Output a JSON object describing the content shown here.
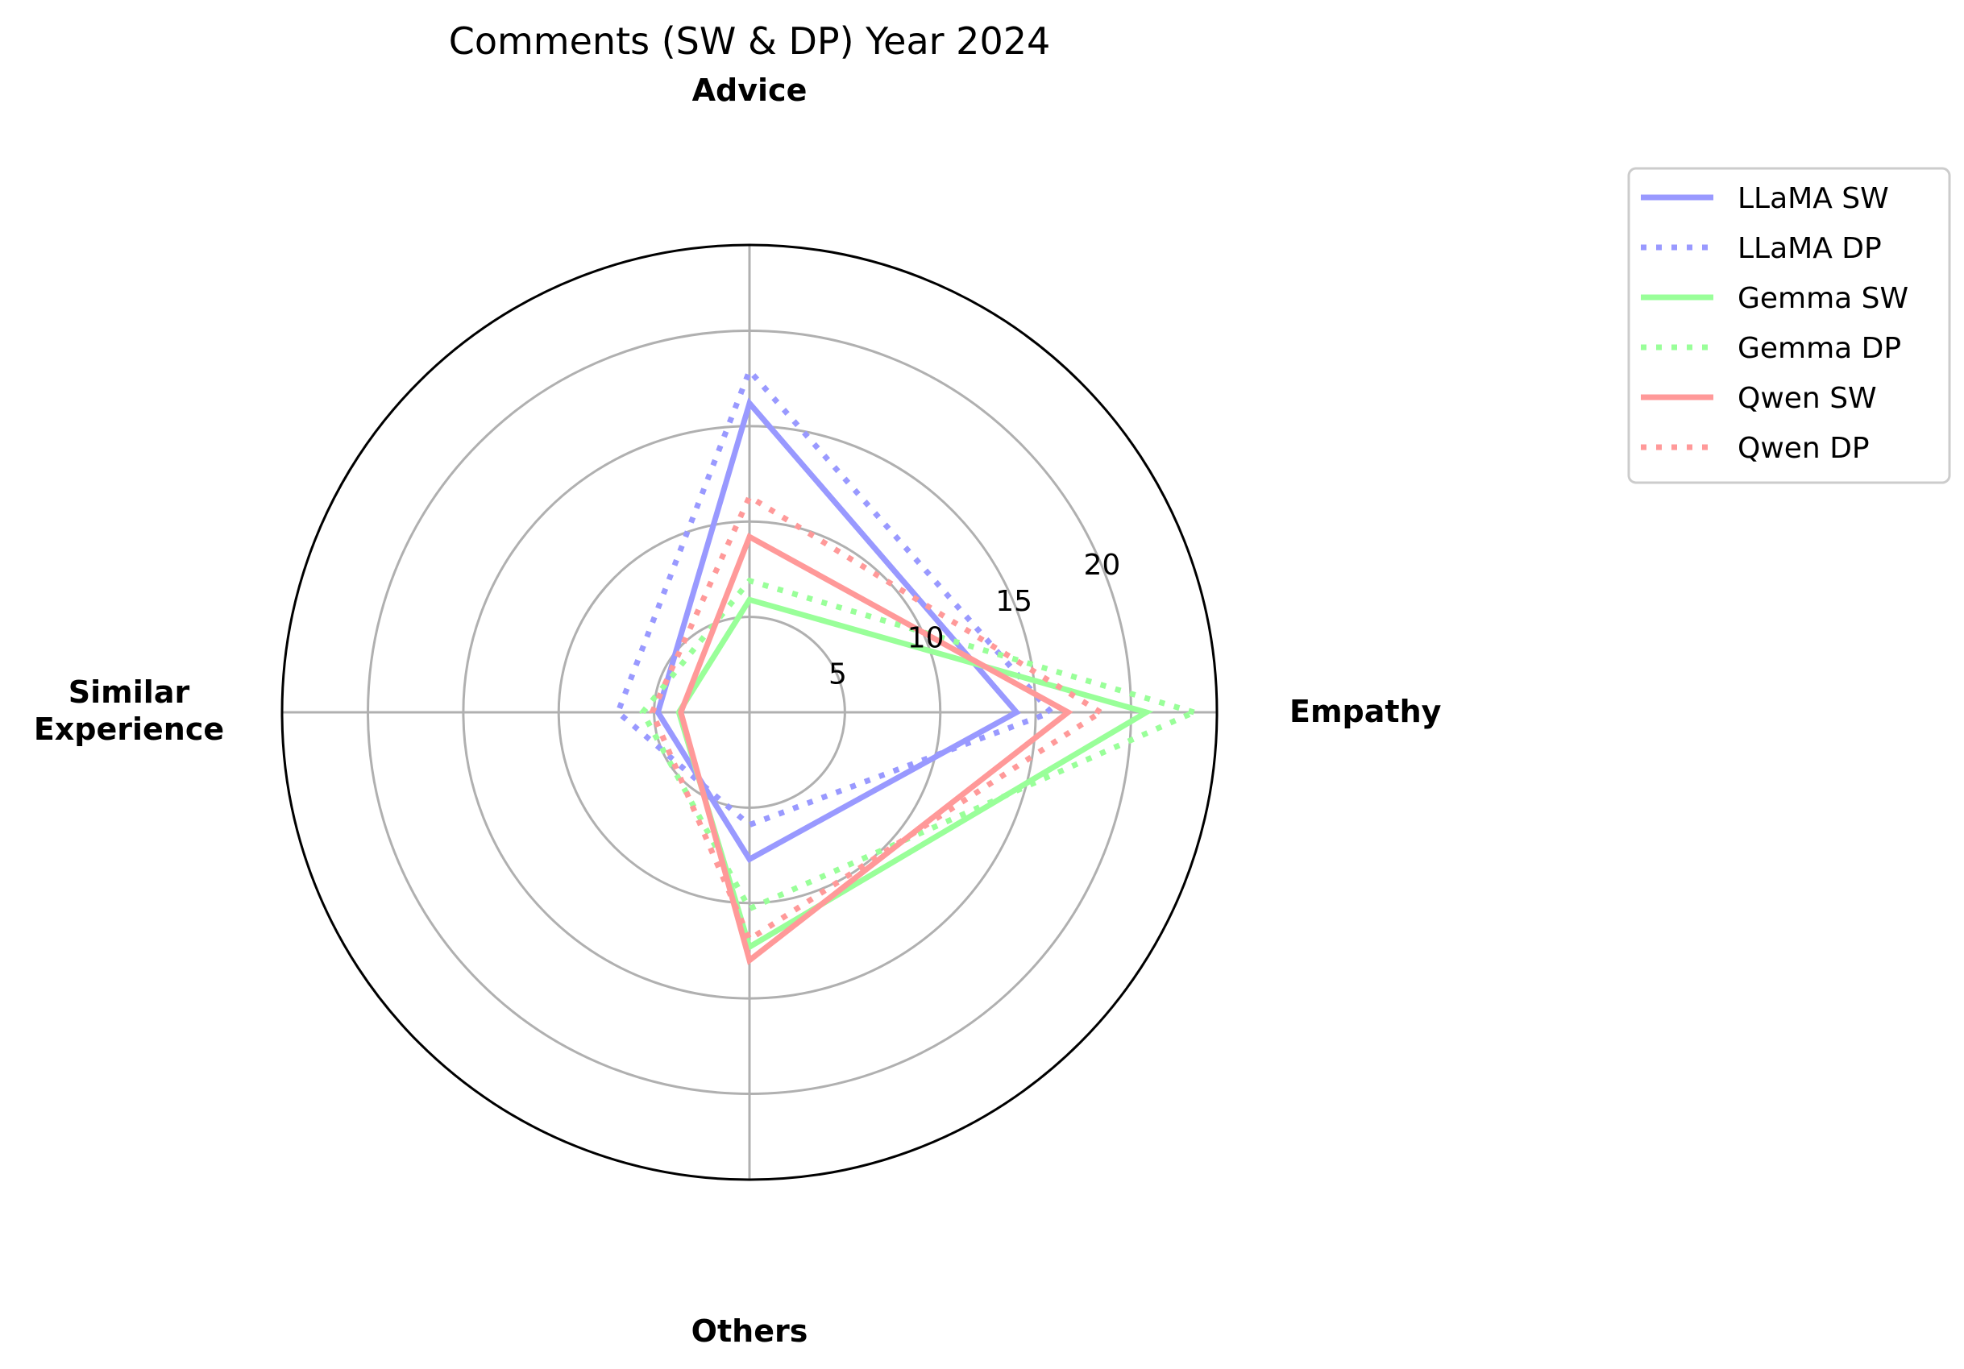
{
  "chart_data": {
    "type": "radar",
    "title": "Comments (SW & DP) Year 2024",
    "axes": [
      "Empathy",
      "Advice",
      "Similar\nExperience",
      "Others"
    ],
    "rlim": [
      0,
      24.5
    ],
    "r_ticks": [
      5,
      10,
      15,
      20
    ],
    "grid": true,
    "legend_position": "top-right outside",
    "series": [
      {
        "name": "LLaMA SW",
        "color": "#9999ff",
        "style": "solid",
        "values": [
          14,
          16.2,
          4.8,
          7.7
        ]
      },
      {
        "name": "LLaMA DP",
        "color": "#9999ff",
        "style": "dotted",
        "values": [
          15.8,
          17.9,
          6.9,
          5.9
        ]
      },
      {
        "name": "Gemma SW",
        "color": "#99ff99",
        "style": "solid",
        "values": [
          20.8,
          5.9,
          3.7,
          12.3
        ]
      },
      {
        "name": "Gemma DP",
        "color": "#99ff99",
        "style": "dotted",
        "values": [
          23.3,
          6.9,
          5.6,
          10.3
        ]
      },
      {
        "name": "Qwen SW",
        "color": "#ff9999",
        "style": "solid",
        "values": [
          16.7,
          9.2,
          3.6,
          13
        ]
      },
      {
        "name": "Qwen DP",
        "color": "#ff9999",
        "style": "dotted",
        "values": [
          18.4,
          11.3,
          5.1,
          11.9
        ]
      }
    ]
  }
}
